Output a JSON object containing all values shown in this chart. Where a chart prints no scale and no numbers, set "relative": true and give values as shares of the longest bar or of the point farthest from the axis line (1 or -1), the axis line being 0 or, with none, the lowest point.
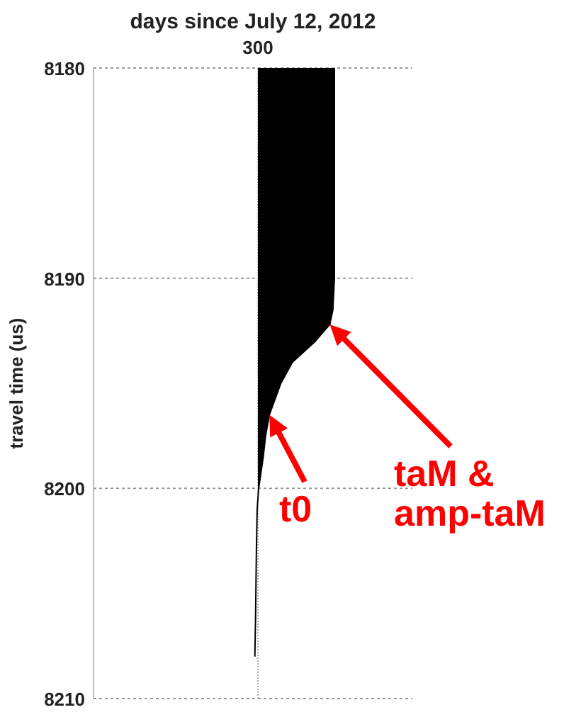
{
  "chart_data": {
    "type": "area",
    "orientation": "horizontal",
    "relative": true,
    "xlabel": "days since July 12, 2012",
    "ylabel": "travel time (us)",
    "ylim": [
      8210,
      8180
    ],
    "yticks": [
      8180,
      8190,
      8200,
      8210
    ],
    "grid": "y",
    "x": [
      8180,
      8190,
      8191.5,
      8192.2,
      8193,
      8194,
      8195,
      8195.8,
      8196.5,
      8197.5,
      8198.5,
      8199.5,
      8200,
      8201,
      8203,
      8206,
      8208
    ],
    "series": [
      {
        "color": "#000000",
        "values": [
          1,
          1,
          0.98,
          0.94,
          0.75,
          0.45,
          0.3,
          0.22,
          0.15,
          0.1,
          0.07,
          0.03,
          0.01,
          -0.01,
          -0.02,
          -0.03,
          -0.04
        ]
      }
    ],
    "annotations": [
      "300",
      {
        "text": "t0",
        "x": 0.15,
        "y": 8196.5
      },
      {
        "text": "taM &\namp-taM",
        "x": 0.94,
        "y": 8192.2
      }
    ]
  }
}
